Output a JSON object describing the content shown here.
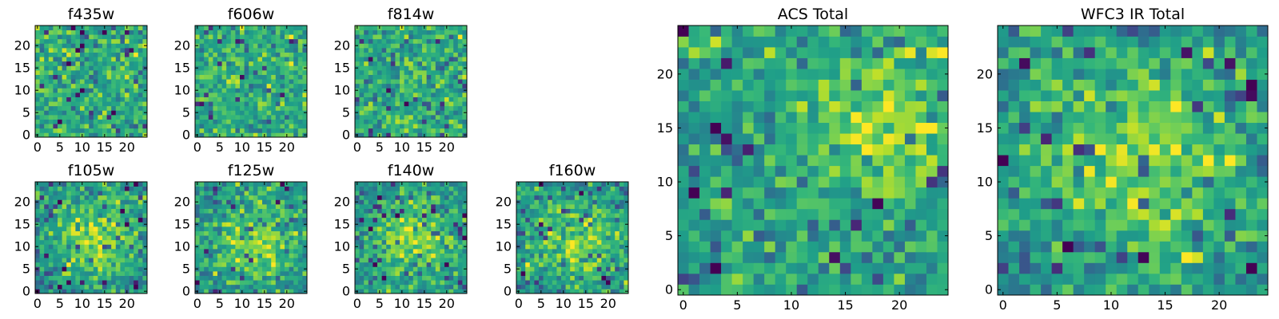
{
  "chart_data": [
    {
      "type": "heatmap",
      "title": "f435w",
      "colormap": "viridis",
      "grid": false,
      "xlim": [
        -0.5,
        24.5
      ],
      "ylim": [
        -0.5,
        24.5
      ],
      "xticks": [
        0,
        5,
        10,
        15,
        20
      ],
      "xtick_labels": [
        "0",
        "5",
        "10",
        "15",
        "20"
      ],
      "yticks": [
        0,
        5,
        10,
        15,
        20
      ],
      "ytick_labels": [
        "0",
        "5",
        "10",
        "15",
        "20"
      ],
      "pattern": "noise"
    },
    {
      "type": "heatmap",
      "title": "f606w",
      "colormap": "viridis",
      "grid": false,
      "xlim": [
        -0.5,
        24.5
      ],
      "ylim": [
        -0.5,
        24.5
      ],
      "xticks": [
        0,
        5,
        10,
        15,
        20
      ],
      "xtick_labels": [
        "0",
        "5",
        "10",
        "15",
        "20"
      ],
      "yticks": [
        0,
        5,
        10,
        15,
        20
      ],
      "ytick_labels": [
        "0",
        "5",
        "10",
        "15",
        "20"
      ],
      "pattern": "noise"
    },
    {
      "type": "heatmap",
      "title": "f814w",
      "colormap": "viridis",
      "grid": false,
      "xlim": [
        -0.5,
        24.5
      ],
      "ylim": [
        -0.5,
        24.5
      ],
      "xticks": [
        0,
        5,
        10,
        15,
        20
      ],
      "xtick_labels": [
        "0",
        "5",
        "10",
        "15",
        "20"
      ],
      "yticks": [
        0,
        5,
        10,
        15,
        20
      ],
      "ytick_labels": [
        "0",
        "5",
        "10",
        "15",
        "20"
      ],
      "pattern": "noise"
    },
    {
      "type": "heatmap",
      "title": "f105w",
      "colormap": "viridis",
      "grid": false,
      "xlim": [
        -0.5,
        24.5
      ],
      "ylim": [
        -0.5,
        24.5
      ],
      "xticks": [
        0,
        5,
        10,
        15,
        20
      ],
      "xtick_labels": [
        "0",
        "5",
        "10",
        "15",
        "20"
      ],
      "yticks": [
        0,
        5,
        10,
        15,
        20
      ],
      "ytick_labels": [
        "0",
        "5",
        "10",
        "15",
        "20"
      ],
      "pattern": "blob"
    },
    {
      "type": "heatmap",
      "title": "f125w",
      "colormap": "viridis",
      "grid": false,
      "xlim": [
        -0.5,
        24.5
      ],
      "ylim": [
        -0.5,
        24.5
      ],
      "xticks": [
        0,
        5,
        10,
        15,
        20
      ],
      "xtick_labels": [
        "0",
        "5",
        "10",
        "15",
        "20"
      ],
      "yticks": [
        0,
        5,
        10,
        15,
        20
      ],
      "ytick_labels": [
        "0",
        "5",
        "10",
        "15",
        "20"
      ],
      "pattern": "blob"
    },
    {
      "type": "heatmap",
      "title": "f140w",
      "colormap": "viridis",
      "grid": false,
      "xlim": [
        -0.5,
        24.5
      ],
      "ylim": [
        -0.5,
        24.5
      ],
      "xticks": [
        0,
        5,
        10,
        15,
        20
      ],
      "xtick_labels": [
        "0",
        "5",
        "10",
        "15",
        "20"
      ],
      "yticks": [
        0,
        5,
        10,
        15,
        20
      ],
      "ytick_labels": [
        "0",
        "5",
        "10",
        "15",
        "20"
      ],
      "pattern": "blob"
    },
    {
      "type": "heatmap",
      "title": "f160w",
      "colormap": "viridis",
      "grid": false,
      "xlim": [
        -0.5,
        24.5
      ],
      "ylim": [
        -0.5,
        24.5
      ],
      "xticks": [
        0,
        5,
        10,
        15,
        20
      ],
      "xtick_labels": [
        "0",
        "5",
        "10",
        "15",
        "20"
      ],
      "yticks": [
        0,
        5,
        10,
        15,
        20
      ],
      "ytick_labels": [
        "0",
        "5",
        "10",
        "15",
        "20"
      ],
      "pattern": "blob"
    },
    {
      "type": "heatmap",
      "title": "ACS Total",
      "colormap": "viridis",
      "grid": false,
      "xlim": [
        -0.5,
        24.5
      ],
      "ylim": [
        -0.5,
        24.5
      ],
      "xticks": [
        0,
        5,
        10,
        15,
        20
      ],
      "xtick_labels": [
        "0",
        "5",
        "10",
        "15",
        "20"
      ],
      "yticks": [
        0,
        5,
        10,
        15,
        20
      ],
      "ytick_labels": [
        "0",
        "5",
        "10",
        "15",
        "20"
      ],
      "pattern": "diagonal"
    },
    {
      "type": "heatmap",
      "title": "WFC3 IR Total",
      "colormap": "viridis",
      "grid": false,
      "xlim": [
        -0.5,
        24.5
      ],
      "ylim": [
        -0.5,
        24.5
      ],
      "xticks": [
        0,
        5,
        10,
        15,
        20
      ],
      "xtick_labels": [
        "0",
        "5",
        "10",
        "15",
        "20"
      ],
      "yticks": [
        0,
        5,
        10,
        15,
        20
      ],
      "ytick_labels": [
        "0",
        "5",
        "10",
        "15",
        "20"
      ],
      "pattern": "blob"
    }
  ]
}
